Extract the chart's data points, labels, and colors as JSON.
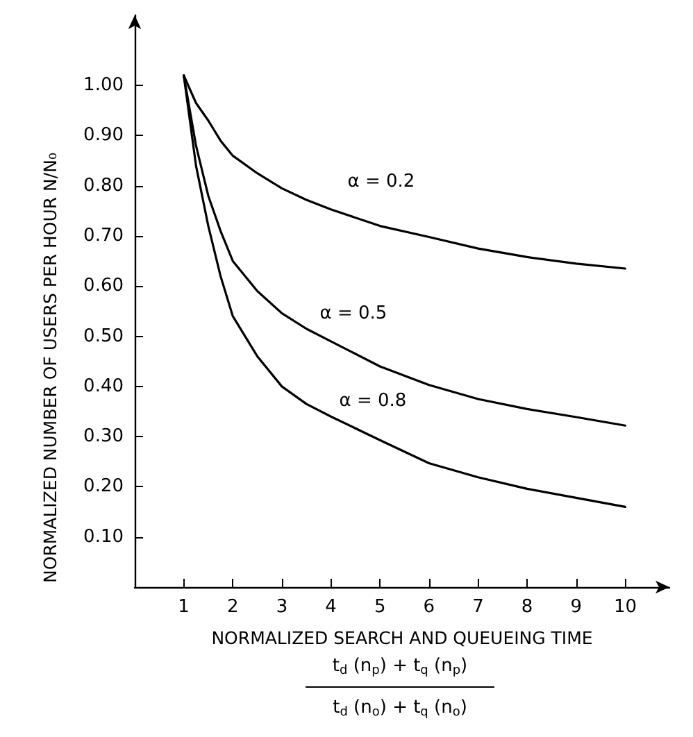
{
  "chart_data": {
    "type": "line",
    "xlabel": "NORMALIZED SEARCH AND QUEUEING TIME",
    "ylabel": "NORMALIZED NUMBER OF USERS PER HOUR N/N₀",
    "annotations": [
      "t$_{d}$ (n$_{p}$) + t$_{q}$ (n$_{p}$)",
      "t$_{d}$ (n$_{o}$) + t$_{q}$ (n$_{o}$)"
    ],
    "x": [
      1,
      1.25,
      1.5,
      1.75,
      2,
      2.5,
      3,
      3.5,
      4,
      5,
      6,
      7,
      8,
      9,
      10
    ],
    "series": [
      {
        "name": "α = 0.2",
        "color": "#000000",
        "values": [
          1.02,
          0.965,
          0.93,
          0.89,
          0.86,
          0.825,
          0.795,
          0.772,
          0.753,
          0.72,
          0.698,
          0.675,
          0.658,
          0.645,
          0.635
        ]
      },
      {
        "name": "α = 0.5",
        "color": "#000000",
        "values": [
          1.02,
          0.88,
          0.78,
          0.71,
          0.65,
          0.59,
          0.546,
          0.515,
          0.49,
          0.44,
          0.403,
          0.375,
          0.355,
          0.339,
          0.322
        ]
      },
      {
        "name": "α = 0.8",
        "color": "#000000",
        "values": [
          1.02,
          0.84,
          0.72,
          0.62,
          0.54,
          0.46,
          0.4,
          0.365,
          0.34,
          0.293,
          0.247,
          0.219,
          0.196,
          0.178,
          0.16
        ]
      }
    ],
    "xlim": [
      0,
      10.9
    ],
    "ylim": [
      0,
      1.14
    ],
    "xticks": [
      1,
      2,
      3,
      4,
      5,
      6,
      7,
      8,
      9,
      10
    ],
    "yticks": [
      {
        "value": 0.1,
        "label": "0.10"
      },
      {
        "value": 0.2,
        "label": "0.20"
      },
      {
        "value": 0.3,
        "label": "0.30"
      },
      {
        "value": 0.4,
        "label": "0.40"
      },
      {
        "value": 0.5,
        "label": "0.50"
      },
      {
        "value": 0.6,
        "label": "0.60"
      },
      {
        "value": 0.7,
        "label": "0.70"
      },
      {
        "value": 0.8,
        "label": "0.80"
      },
      {
        "value": 0.9,
        "label": "0.90"
      },
      {
        "value": 1.0,
        "label": "1.00"
      }
    ],
    "grid": false,
    "legend": false,
    "marker": "none",
    "line_style": "solid"
  }
}
